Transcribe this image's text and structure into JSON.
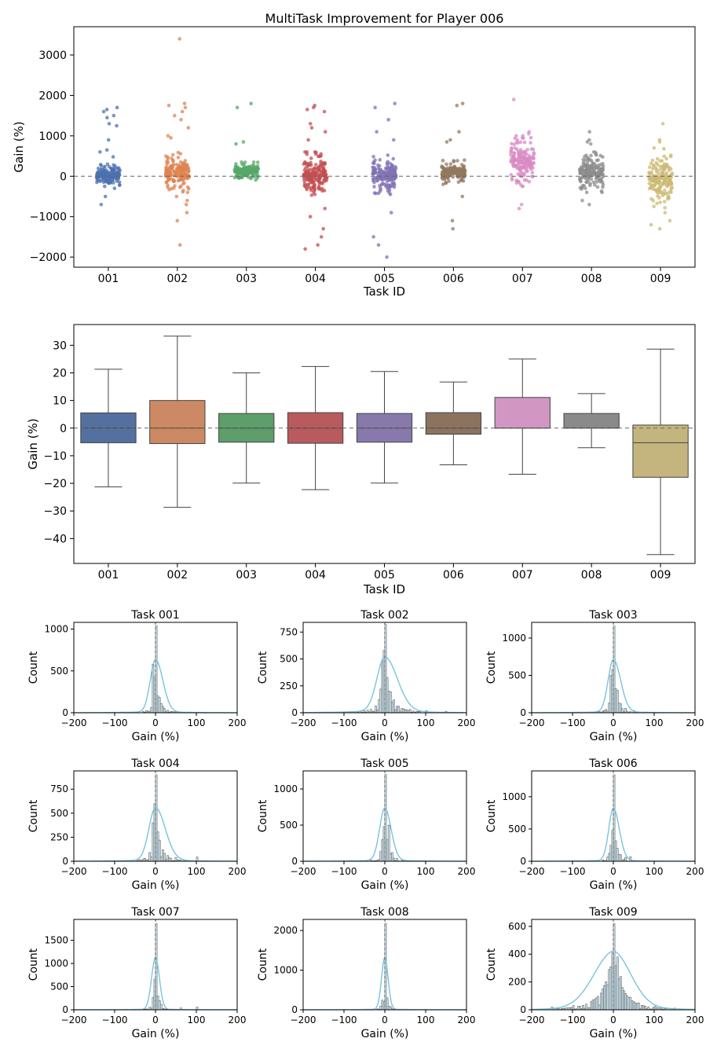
{
  "chart_data": [
    {
      "type": "scatter",
      "title": "MultiTask Improvement for Player 006",
      "xlabel": "Task ID",
      "ylabel": "Gain (%)",
      "ylim": [
        -2250,
        3700
      ],
      "yticks": [
        -2000,
        -1000,
        0,
        1000,
        2000,
        3000
      ],
      "ytick_labels": [
        "−2000",
        "−1000",
        "0",
        "1000",
        "2000",
        "3000"
      ],
      "reference_line": 0,
      "categories": [
        "001",
        "002",
        "003",
        "004",
        "005",
        "006",
        "007",
        "008",
        "009"
      ],
      "series": [
        {
          "name": "001",
          "color": "#4c72b0",
          "dense": [
            -250,
            300
          ],
          "outliers": [
            1700,
            1650,
            1600,
            1500,
            1450,
            1300,
            1250,
            900,
            -300,
            -500,
            -700,
            600,
            650,
            480
          ]
        },
        {
          "name": "002",
          "color": "#dd8452",
          "dense": [
            -400,
            600
          ],
          "outliers": [
            3400,
            1800,
            1750,
            1700,
            1600,
            1500,
            1400,
            1200,
            1000,
            950,
            -500,
            -600,
            -700,
            -900,
            -1100,
            -1700
          ]
        },
        {
          "name": "003",
          "color": "#55a868",
          "dense": [
            -100,
            350
          ],
          "outliers": [
            1800,
            1700,
            850,
            800
          ]
        },
        {
          "name": "004",
          "color": "#c44e52",
          "dense": [
            -500,
            600
          ],
          "outliers": [
            1750,
            1700,
            1650,
            1600,
            1300,
            1200,
            1100,
            900,
            -800,
            -1000,
            -1300,
            -1500,
            -1700,
            -1800
          ]
        },
        {
          "name": "005",
          "color": "#8172b3",
          "dense": [
            -450,
            550
          ],
          "outliers": [
            1800,
            1700,
            1400,
            1100,
            900,
            -900,
            -1500,
            -1700,
            -2000
          ]
        },
        {
          "name": "006",
          "color": "#937860",
          "dense": [
            -200,
            400
          ],
          "outliers": [
            1800,
            1750,
            1100,
            900,
            850,
            -500,
            -1100,
            -1300
          ]
        },
        {
          "name": "007",
          "color": "#da8bc3",
          "dense": [
            -250,
            1000
          ],
          "outliers": [
            1900,
            1100,
            1050,
            900,
            -700,
            -800
          ]
        },
        {
          "name": "008",
          "color": "#8c8c8c",
          "dense": [
            -400,
            600
          ],
          "outliers": [
            1100,
            900,
            850,
            800,
            -600,
            -700
          ]
        },
        {
          "name": "009",
          "color": "#ccb974",
          "dense": [
            -900,
            700
          ],
          "outliers": [
            1300,
            900,
            850,
            -1100,
            -1200,
            -1300
          ]
        }
      ]
    },
    {
      "type": "box",
      "xlabel": "Task ID",
      "ylabel": "Gain (%)",
      "ylim": [
        -49,
        37.5
      ],
      "yticks": [
        -40,
        -30,
        -20,
        -10,
        0,
        10,
        20,
        30
      ],
      "ytick_labels": [
        "−40",
        "−30",
        "−20",
        "−10",
        "0",
        "10",
        "20",
        "30"
      ],
      "reference_line": 0,
      "categories": [
        "001",
        "002",
        "003",
        "004",
        "005",
        "006",
        "007",
        "008",
        "009"
      ],
      "boxes": [
        {
          "name": "001",
          "color": "#5470a0",
          "whislo": -21.3,
          "q1": -5.3,
          "med": 0,
          "q3": 5.5,
          "whishi": 21.3
        },
        {
          "name": "002",
          "color": "#cc8963",
          "whislo": -28.7,
          "q1": -5.6,
          "med": 0,
          "q3": 10.0,
          "whishi": 33.3
        },
        {
          "name": "003",
          "color": "#5d9e6b",
          "whislo": -19.9,
          "q1": -5.1,
          "med": 0,
          "q3": 5.3,
          "whishi": 20.0
        },
        {
          "name": "004",
          "color": "#b85a5e",
          "whislo": -22.3,
          "q1": -5.5,
          "med": 0,
          "q3": 5.6,
          "whishi": 22.3
        },
        {
          "name": "005",
          "color": "#8879ac",
          "whislo": -19.9,
          "q1": -5.1,
          "med": 0,
          "q3": 5.3,
          "whishi": 20.5
        },
        {
          "name": "006",
          "color": "#8b735f",
          "whislo": -13.3,
          "q1": -2.2,
          "med": 0,
          "q3": 5.6,
          "whishi": 16.7
        },
        {
          "name": "007",
          "color": "#d197c2",
          "whislo": -16.7,
          "q1": 0,
          "med": 0,
          "q3": 11.1,
          "whishi": 25.0
        },
        {
          "name": "008",
          "color": "#8a8a8a",
          "whislo": -7.1,
          "q1": 0,
          "med": 0,
          "q3": 5.3,
          "whishi": 12.5
        },
        {
          "name": "009",
          "color": "#c4b57f",
          "whislo": -45.8,
          "q1": -17.8,
          "med": -5.3,
          "q3": 1.1,
          "whishi": 28.6
        }
      ]
    },
    {
      "type": "histogram",
      "title": "Task 001",
      "xlabel": "Gain (%)",
      "ylabel": "Count",
      "xlim": [
        -200,
        200
      ],
      "xticks": [
        -200,
        -100,
        0,
        100,
        200
      ],
      "xtick_labels": [
        "−200",
        "−100",
        "0",
        "100",
        "200"
      ],
      "ymax": 1080,
      "yticks": [
        0,
        500,
        1000
      ],
      "ytick_labels": [
        "0",
        "500",
        "1000"
      ],
      "peak": 1040,
      "spread": 8,
      "skew": 1.4,
      "tail": 0.02,
      "bins": [
        [
          4,
          200
        ],
        [
          12,
          110
        ],
        [
          20,
          50
        ],
        [
          28,
          30
        ],
        [
          40,
          12
        ],
        [
          -12,
          60
        ],
        [
          -8,
          580
        ]
      ]
    },
    {
      "type": "histogram",
      "title": "Task 002",
      "xlabel": "Gain (%)",
      "ylabel": "Count",
      "xlim": [
        -200,
        200
      ],
      "xticks": [
        -200,
        -100,
        0,
        100,
        200
      ],
      "xtick_labels": [
        "−200",
        "−100",
        "0",
        "100",
        "200"
      ],
      "ymax": 840,
      "yticks": [
        0,
        250,
        500,
        750
      ],
      "ytick_labels": [
        "0",
        "250",
        "500",
        "750"
      ],
      "peak": 820,
      "spread": 12,
      "skew": 1.6,
      "tail": 0.05,
      "bins": [
        [
          -4,
          580
        ],
        [
          -8,
          480
        ],
        [
          -12,
          220
        ],
        [
          8,
          200
        ],
        [
          16,
          100
        ],
        [
          28,
          60
        ],
        [
          60,
          30
        ],
        [
          100,
          20
        ],
        [
          150,
          12
        ]
      ]
    },
    {
      "type": "histogram",
      "title": "Task 003",
      "xlabel": "Gain (%)",
      "ylabel": "Count",
      "xlim": [
        -200,
        200
      ],
      "xticks": [
        -200,
        -100,
        0,
        100,
        200
      ],
      "xtick_labels": [
        "−200",
        "−100",
        "0",
        "100",
        "200"
      ],
      "ymax": 1210,
      "yticks": [
        0,
        500,
        1000
      ],
      "ytick_labels": [
        "0",
        "500",
        "1000"
      ],
      "peak": 1160,
      "spread": 8,
      "skew": 1.4,
      "tail": 0.02,
      "bins": [
        [
          -4,
          580
        ],
        [
          -8,
          500
        ],
        [
          8,
          300
        ],
        [
          16,
          120
        ],
        [
          30,
          60
        ],
        [
          50,
          30
        ]
      ]
    },
    {
      "type": "histogram",
      "title": "Task 004",
      "xlabel": "Gain (%)",
      "ylabel": "Count",
      "xlim": [
        -200,
        200
      ],
      "xticks": [
        -200,
        -100,
        0,
        100,
        200
      ],
      "xtick_labels": [
        "−200",
        "−100",
        "0",
        "100",
        "200"
      ],
      "ymax": 940,
      "yticks": [
        0,
        250,
        500,
        750
      ],
      "ytick_labels": [
        "0",
        "250",
        "500",
        "750"
      ],
      "peak": 900,
      "spread": 10,
      "skew": 1.5,
      "tail": 0.03,
      "bins": [
        [
          -4,
          600
        ],
        [
          -8,
          400
        ],
        [
          8,
          220
        ],
        [
          16,
          120
        ],
        [
          30,
          60
        ],
        [
          50,
          40
        ],
        [
          100,
          45
        ]
      ]
    },
    {
      "type": "histogram",
      "title": "Task 005",
      "xlabel": "Gain (%)",
      "ylabel": "Count",
      "xlim": [
        -200,
        200
      ],
      "xticks": [
        -200,
        -100,
        0,
        100,
        200
      ],
      "xtick_labels": [
        "−200",
        "−100",
        "0",
        "100",
        "200"
      ],
      "ymax": 1250,
      "yticks": [
        0,
        500,
        1000
      ],
      "ytick_labels": [
        "0",
        "500",
        "1000"
      ],
      "peak": 1200,
      "spread": 8,
      "skew": 1.2,
      "tail": 0.02,
      "bins": [
        [
          -4,
          480
        ],
        [
          -8,
          300
        ],
        [
          8,
          500
        ],
        [
          16,
          120
        ],
        [
          30,
          40
        ]
      ]
    },
    {
      "type": "histogram",
      "title": "Task 006",
      "xlabel": "Gain (%)",
      "ylabel": "Count",
      "xlim": [
        -200,
        200
      ],
      "xticks": [
        -200,
        -100,
        0,
        100,
        200
      ],
      "xtick_labels": [
        "−200",
        "−100",
        "0",
        "100",
        "200"
      ],
      "ymax": 1400,
      "yticks": [
        0,
        500,
        1000
      ],
      "ytick_labels": [
        "0",
        "500",
        "1000"
      ],
      "peak": 1340,
      "spread": 7,
      "skew": 1.3,
      "tail": 0.02,
      "bins": [
        [
          -4,
          480
        ],
        [
          8,
          200
        ],
        [
          16,
          100
        ],
        [
          30,
          60
        ],
        [
          40,
          70
        ]
      ]
    },
    {
      "type": "histogram",
      "title": "Task 007",
      "xlabel": "Gain (%)",
      "ylabel": "Count",
      "xlim": [
        -200,
        200
      ],
      "xticks": [
        -200,
        -100,
        0,
        100,
        200
      ],
      "xtick_labels": [
        "−200",
        "−100",
        "0",
        "100",
        "200"
      ],
      "ymax": 1950,
      "yticks": [
        0,
        500,
        1000,
        1500
      ],
      "ytick_labels": [
        "0",
        "500",
        "1000",
        "1500"
      ],
      "peak": 1860,
      "spread": 6,
      "skew": 1.0,
      "tail": 0.01,
      "bins": [
        [
          4,
          300
        ],
        [
          8,
          200
        ],
        [
          12,
          120
        ],
        [
          60,
          40
        ],
        [
          100,
          60
        ]
      ]
    },
    {
      "type": "histogram",
      "title": "Task 008",
      "xlabel": "Gain (%)",
      "ylabel": "Count",
      "xlim": [
        -200,
        200
      ],
      "xticks": [
        -200,
        -100,
        0,
        100,
        200
      ],
      "xtick_labels": [
        "−200",
        "−100",
        "0",
        "100",
        "200"
      ],
      "ymax": 2280,
      "yticks": [
        0,
        1000,
        2000
      ],
      "ytick_labels": [
        "0",
        "1000",
        "2000"
      ],
      "peak": 2180,
      "spread": 5,
      "skew": 1.0,
      "tail": 0.01,
      "bins": [
        [
          4,
          300
        ],
        [
          -4,
          200
        ],
        [
          12,
          80
        ]
      ]
    },
    {
      "type": "histogram",
      "title": "Task 009",
      "xlabel": "Gain (%)",
      "ylabel": "Count",
      "xlim": [
        -200,
        200
      ],
      "xticks": [
        -200,
        -100,
        0,
        100,
        200
      ],
      "xtick_labels": [
        "−200",
        "−100",
        "0",
        "100",
        "200"
      ],
      "ymax": 650,
      "yticks": [
        0,
        200,
        400,
        600
      ],
      "ytick_labels": [
        "0",
        "200",
        "400",
        "600"
      ],
      "peak": 620,
      "spread": 30,
      "skew": 0.9,
      "tail": 0.12,
      "bins": [
        [
          -4,
          410
        ],
        [
          -8,
          310
        ],
        [
          -12,
          290
        ],
        [
          -16,
          180
        ],
        [
          8,
          380
        ],
        [
          16,
          240
        ],
        [
          -30,
          120
        ],
        [
          -50,
          70
        ],
        [
          40,
          90
        ],
        [
          60,
          50
        ],
        [
          -100,
          30
        ],
        [
          -150,
          20
        ],
        [
          100,
          25
        ],
        [
          150,
          12
        ]
      ]
    }
  ]
}
